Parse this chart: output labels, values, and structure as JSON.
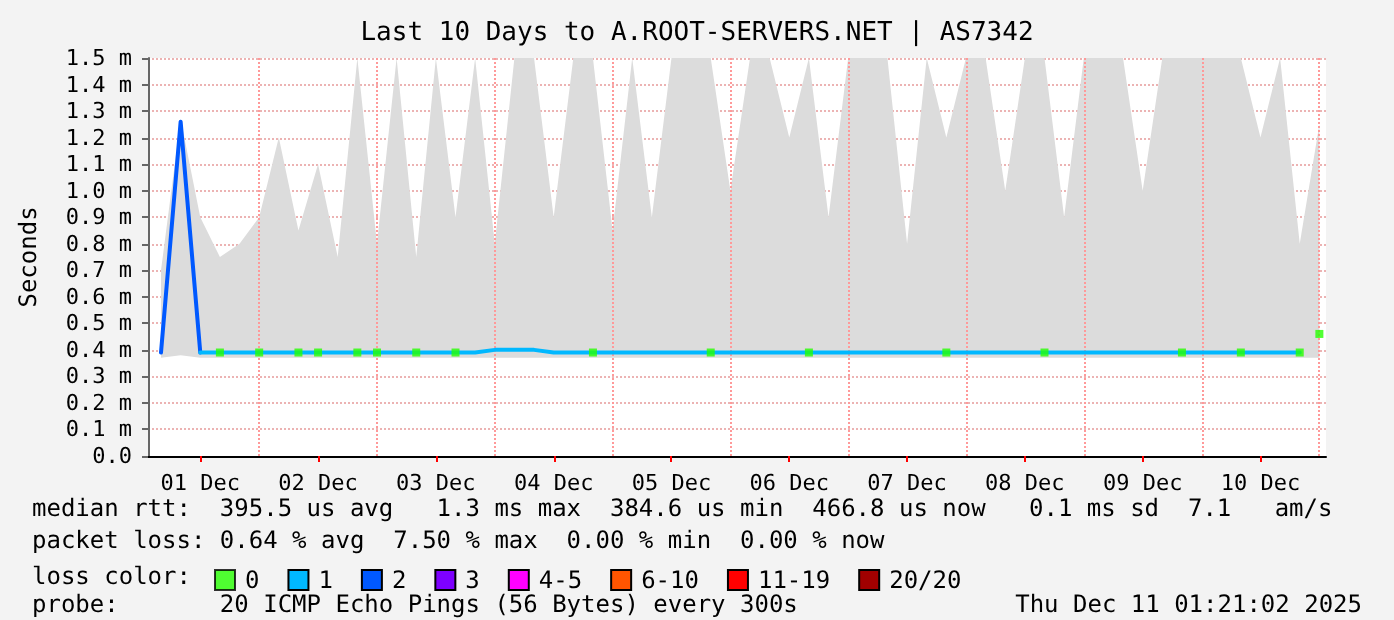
{
  "chart_data": {
    "type": "line",
    "title": "Last 10 Days to A.ROOT-SERVERS.NET | AS7342",
    "ylabel": "Seconds",
    "x": [
      "2025-12-01T04:00",
      "2025-12-01T08:00",
      "2025-12-01T12:00",
      "2025-12-01T16:00",
      "2025-12-01T20:00",
      "2025-12-02T00:00",
      "2025-12-02T04:00",
      "2025-12-02T08:00",
      "2025-12-02T12:00",
      "2025-12-02T16:00",
      "2025-12-02T20:00",
      "2025-12-03T00:00",
      "2025-12-03T04:00",
      "2025-12-03T08:00",
      "2025-12-03T12:00",
      "2025-12-03T16:00",
      "2025-12-03T20:00",
      "2025-12-04T00:00",
      "2025-12-04T04:00",
      "2025-12-04T08:00",
      "2025-12-04T12:00",
      "2025-12-04T16:00",
      "2025-12-04T20:00",
      "2025-12-05T00:00",
      "2025-12-05T04:00",
      "2025-12-05T08:00",
      "2025-12-05T12:00",
      "2025-12-05T16:00",
      "2025-12-05T20:00",
      "2025-12-06T00:00",
      "2025-12-06T04:00",
      "2025-12-06T08:00",
      "2025-12-06T12:00",
      "2025-12-06T16:00",
      "2025-12-06T20:00",
      "2025-12-07T00:00",
      "2025-12-07T04:00",
      "2025-12-07T08:00",
      "2025-12-07T12:00",
      "2025-12-07T16:00",
      "2025-12-07T20:00",
      "2025-12-08T00:00",
      "2025-12-08T04:00",
      "2025-12-08T08:00",
      "2025-12-08T12:00",
      "2025-12-08T16:00",
      "2025-12-08T20:00",
      "2025-12-09T00:00",
      "2025-12-09T04:00",
      "2025-12-09T08:00",
      "2025-12-09T12:00",
      "2025-12-09T16:00",
      "2025-12-09T20:00",
      "2025-12-10T00:00",
      "2025-12-10T04:00",
      "2025-12-10T08:00",
      "2025-12-10T12:00",
      "2025-12-10T16:00",
      "2025-12-10T20:00",
      "2025-12-11T00:00"
    ],
    "series": [
      {
        "name": "0",
        "color": "#26ff00",
        "type": "scatter",
        "marker": "square",
        "values": [
          null,
          null,
          null,
          0.39,
          null,
          0.39,
          null,
          0.39,
          0.39,
          null,
          0.39,
          0.39,
          null,
          0.39,
          null,
          0.39,
          null,
          null,
          null,
          null,
          null,
          null,
          0.39,
          null,
          null,
          null,
          null,
          null,
          0.39,
          null,
          null,
          null,
          null,
          0.39,
          null,
          null,
          null,
          null,
          null,
          null,
          0.39,
          null,
          null,
          null,
          null,
          0.39,
          null,
          null,
          null,
          null,
          null,
          null,
          0.39,
          null,
          null,
          0.39,
          null,
          null,
          0.39,
          0.46
        ]
      },
      {
        "name": "1",
        "color": "#00b8ff",
        "values": [
          null,
          null,
          0.39,
          0.39,
          0.39,
          0.39,
          0.39,
          0.39,
          0.39,
          0.39,
          0.39,
          0.39,
          0.39,
          0.39,
          0.39,
          0.39,
          0.39,
          0.4,
          0.4,
          0.4,
          0.39,
          0.39,
          0.39,
          0.39,
          0.39,
          0.39,
          0.39,
          0.39,
          0.39,
          0.39,
          0.39,
          0.39,
          0.39,
          0.39,
          0.39,
          0.39,
          0.39,
          0.39,
          0.39,
          0.39,
          0.39,
          0.39,
          0.39,
          0.39,
          0.39,
          0.39,
          0.39,
          0.39,
          0.39,
          0.39,
          0.39,
          0.39,
          0.39,
          0.39,
          0.39,
          0.39,
          0.39,
          0.39,
          0.39,
          null
        ],
        "lower": [
          0.37,
          0.38,
          0.37,
          0.37,
          0.37,
          0.37,
          0.37,
          0.37,
          0.37,
          0.37,
          0.37,
          0.37,
          0.37,
          0.37,
          0.37,
          0.37,
          0.37,
          0.37,
          0.37,
          0.37,
          0.37,
          0.37,
          0.37,
          0.37,
          0.37,
          0.37,
          0.37,
          0.37,
          0.37,
          0.37,
          0.37,
          0.37,
          0.37,
          0.37,
          0.37,
          0.37,
          0.37,
          0.37,
          0.37,
          0.37,
          0.37,
          0.37,
          0.37,
          0.37,
          0.37,
          0.37,
          0.37,
          0.37,
          0.37,
          0.37,
          0.37,
          0.37,
          0.37,
          0.37,
          0.37,
          0.37,
          0.37,
          0.37,
          0.37,
          0.37
        ],
        "upper": [
          0.7,
          1.27,
          0.9,
          0.75,
          0.8,
          0.9,
          1.2,
          0.85,
          1.1,
          0.75,
          1.5,
          0.8,
          1.5,
          0.75,
          1.5,
          0.9,
          1.5,
          0.8,
          1.5,
          1.5,
          0.9,
          1.5,
          1.5,
          0.85,
          1.5,
          0.9,
          1.5,
          1.5,
          1.5,
          1.0,
          1.5,
          1.5,
          1.2,
          1.5,
          0.9,
          1.5,
          1.5,
          1.5,
          0.8,
          1.5,
          1.2,
          1.5,
          1.5,
          1.0,
          1.5,
          1.5,
          0.9,
          1.5,
          1.5,
          1.5,
          1.0,
          1.5,
          1.5,
          1.5,
          1.5,
          1.5,
          1.2,
          1.5,
          0.8,
          1.25
        ]
      },
      {
        "name": "2",
        "color": "#0059ff",
        "x": [
          "2025-12-01T04:00",
          "2025-12-01T08:00",
          "2025-12-01T12:00"
        ],
        "values": [
          0.39,
          1.26,
          0.39
        ]
      },
      {
        "name": "3",
        "color": "#7e00ff",
        "values": [
          null,
          null,
          null,
          null,
          null,
          null,
          null,
          null,
          null,
          null,
          null,
          null,
          null,
          null,
          null,
          null,
          null,
          null,
          null,
          null,
          null,
          null,
          null,
          null,
          null,
          null,
          null,
          null,
          null,
          null,
          null,
          null,
          null,
          null,
          null,
          null,
          null,
          null,
          null,
          null,
          null,
          null,
          null,
          null,
          null,
          null,
          null,
          null,
          null,
          null,
          null,
          null,
          null,
          null,
          null,
          null,
          null,
          null,
          null,
          null
        ]
      },
      {
        "name": "4-5",
        "color": "#ff00ff",
        "values": [
          null,
          null,
          null,
          null,
          null,
          null,
          null,
          null,
          null,
          null,
          null,
          null,
          null,
          null,
          null,
          null,
          null,
          null,
          null,
          null,
          null,
          null,
          null,
          null,
          null,
          null,
          null,
          null,
          null,
          null,
          null,
          null,
          null,
          null,
          null,
          null,
          null,
          null,
          null,
          null,
          null,
          null,
          null,
          null,
          null,
          null,
          null,
          null,
          null,
          null,
          null,
          null,
          null,
          null,
          null,
          null,
          null,
          null,
          null,
          null
        ]
      },
      {
        "name": "6-10",
        "color": "#ff5500",
        "values": [
          null,
          null,
          null,
          null,
          null,
          null,
          null,
          null,
          null,
          null,
          null,
          null,
          null,
          null,
          null,
          null,
          null,
          null,
          null,
          null,
          null,
          null,
          null,
          null,
          null,
          null,
          null,
          null,
          null,
          null,
          null,
          null,
          null,
          null,
          null,
          null,
          null,
          null,
          null,
          null,
          null,
          null,
          null,
          null,
          null,
          null,
          null,
          null,
          null,
          null,
          null,
          null,
          null,
          null,
          null,
          null,
          null,
          null,
          null,
          null
        ]
      },
      {
        "name": "11-19",
        "color": "#ff0000",
        "values": [
          null,
          null,
          null,
          null,
          null,
          null,
          null,
          null,
          null,
          null,
          null,
          null,
          null,
          null,
          null,
          null,
          null,
          null,
          null,
          null,
          null,
          null,
          null,
          null,
          null,
          null,
          null,
          null,
          null,
          null,
          null,
          null,
          null,
          null,
          null,
          null,
          null,
          null,
          null,
          null,
          null,
          null,
          null,
          null,
          null,
          null,
          null,
          null,
          null,
          null,
          null,
          null,
          null,
          null,
          null,
          null,
          null,
          null,
          null,
          null
        ]
      },
      {
        "name": "20/20",
        "color": "#a10000",
        "values": [
          null,
          null,
          null,
          null,
          null,
          null,
          null,
          null,
          null,
          null,
          null,
          null,
          null,
          null,
          null,
          null,
          null,
          null,
          null,
          null,
          null,
          null,
          null,
          null,
          null,
          null,
          null,
          null,
          null,
          null,
          null,
          null,
          null,
          null,
          null,
          null,
          null,
          null,
          null,
          null,
          null,
          null,
          null,
          null,
          null,
          null,
          null,
          null,
          null,
          null,
          null,
          null,
          null,
          null,
          null,
          null,
          null,
          null,
          null,
          null
        ]
      }
    ],
    "xlim": [
      "2025-12-01T01:21",
      "2025-12-11T01:21"
    ],
    "xticks": [
      {
        "value": "2025-12-01T12:00",
        "label": "01 Dec"
      },
      {
        "value": "2025-12-02T12:00",
        "label": "02 Dec"
      },
      {
        "value": "2025-12-03T12:00",
        "label": "03 Dec"
      },
      {
        "value": "2025-12-04T12:00",
        "label": "04 Dec"
      },
      {
        "value": "2025-12-05T12:00",
        "label": "05 Dec"
      },
      {
        "value": "2025-12-06T12:00",
        "label": "06 Dec"
      },
      {
        "value": "2025-12-07T12:00",
        "label": "07 Dec"
      },
      {
        "value": "2025-12-08T12:00",
        "label": "08 Dec"
      },
      {
        "value": "2025-12-09T12:00",
        "label": "09 Dec"
      },
      {
        "value": "2025-12-10T12:00",
        "label": "10 Dec"
      }
    ],
    "ylim": [
      0,
      1.5
    ],
    "yticks": [
      {
        "value": 0,
        "label": "0.0"
      },
      {
        "value": 0.1,
        "label": "0.1 m"
      },
      {
        "value": 0.2,
        "label": "0.2 m"
      },
      {
        "value": 0.3,
        "label": "0.3 m"
      },
      {
        "value": 0.4,
        "label": "0.4 m"
      },
      {
        "value": 0.5,
        "label": "0.5 m"
      },
      {
        "value": 0.6,
        "label": "0.6 m"
      },
      {
        "value": 0.7,
        "label": "0.7 m"
      },
      {
        "value": 0.8,
        "label": "0.8 m"
      },
      {
        "value": 0.9,
        "label": "0.9 m"
      },
      {
        "value": 1.0,
        "label": "1.0 m"
      },
      {
        "value": 1.1,
        "label": "1.1 m"
      },
      {
        "value": 1.2,
        "label": "1.2 m"
      },
      {
        "value": 1.3,
        "label": "1.3 m"
      },
      {
        "value": 1.4,
        "label": "1.4 m"
      },
      {
        "value": 1.5,
        "label": "1.5 m"
      }
    ],
    "ref_lines": [
      {
        "axis": "x",
        "value": "2025-12-02T00:00",
        "color": "#ff9999",
        "line_style": "dotted"
      },
      {
        "axis": "x",
        "value": "2025-12-03T00:00",
        "color": "#ff9999",
        "line_style": "dotted"
      },
      {
        "axis": "x",
        "value": "2025-12-04T00:00",
        "color": "#ff9999",
        "line_style": "dotted"
      },
      {
        "axis": "x",
        "value": "2025-12-05T00:00",
        "color": "#ff9999",
        "line_style": "dotted"
      },
      {
        "axis": "x",
        "value": "2025-12-06T00:00",
        "color": "#ff9999",
        "line_style": "dotted"
      },
      {
        "axis": "x",
        "value": "2025-12-07T00:00",
        "color": "#ff9999",
        "line_style": "dotted"
      },
      {
        "axis": "x",
        "value": "2025-12-08T00:00",
        "color": "#ff9999",
        "line_style": "dotted"
      },
      {
        "axis": "x",
        "value": "2025-12-09T00:00",
        "color": "#ff9999",
        "line_style": "dotted"
      },
      {
        "axis": "x",
        "value": "2025-12-10T00:00",
        "color": "#ff9999",
        "line_style": "dotted"
      },
      {
        "axis": "x",
        "value": "2025-12-11T00:00",
        "color": "#ff9999",
        "line_style": "dotted"
      }
    ],
    "grid": "y",
    "legend": "bottom",
    "legend_title": "loss color:",
    "line_style": "solid",
    "annotations": [
      "median rtt:  395.5 us avg   1.3 ms max  384.6 us min  466.8 us now   0.1 ms sd  7.1   am/s",
      "packet loss: 0.64 % avg  7.50 % max  0.00 % min  0.00 % now",
      "probe:       20 ICMP Echo Pings (56 Bytes) every 300s",
      "Thu Dec 11 01:21:02 2025"
    ]
  }
}
